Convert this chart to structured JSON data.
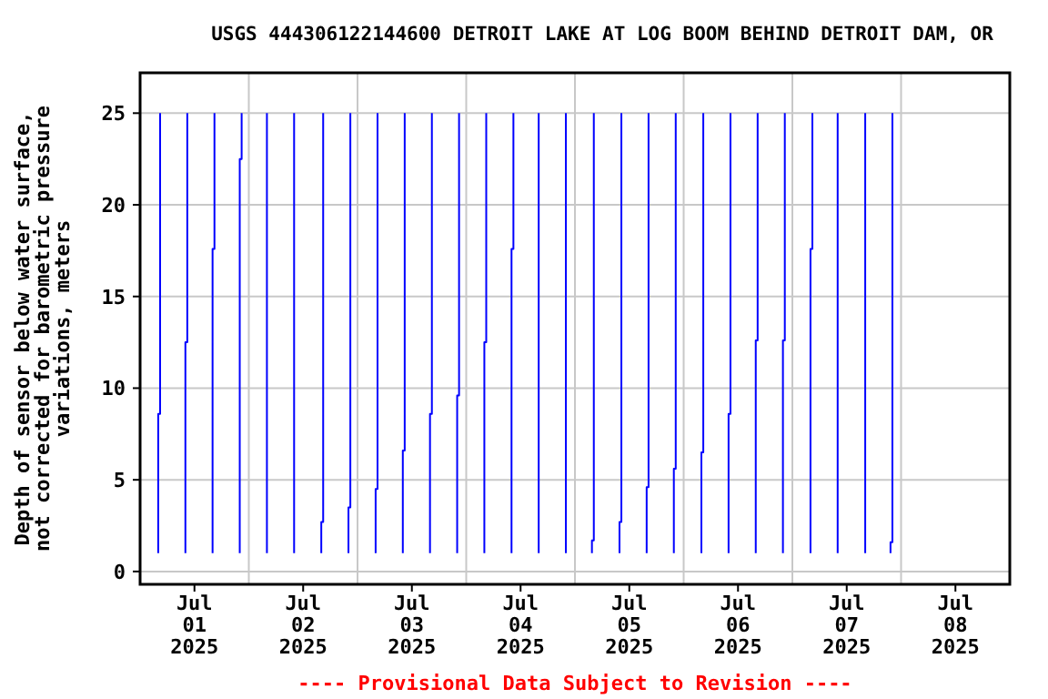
{
  "chart_data": {
    "type": "line",
    "title": "USGS 444306122144600 DETROIT LAKE AT LOG BOOM BEHIND DETROIT DAM, OR",
    "ylabel": "Depth of sensor below water surface, not corrected for barometric pressure variations, meters",
    "annotations": [
      "---- Provisional Data Subject to Revision ----"
    ],
    "xlim": [
      "2025-07-01T00:00",
      "2025-07-09T00:00"
    ],
    "xticks": [
      {
        "value": "2025-07-01T00:00",
        "label": null
      },
      {
        "value": "2025-07-01T12:00",
        "label": "Jul 01 2025"
      },
      {
        "value": "2025-07-02T00:00",
        "label": null
      },
      {
        "value": "2025-07-02T12:00",
        "label": "Jul 02 2025"
      },
      {
        "value": "2025-07-03T00:00",
        "label": null
      },
      {
        "value": "2025-07-03T12:00",
        "label": "Jul 03 2025"
      },
      {
        "value": "2025-07-04T00:00",
        "label": null
      },
      {
        "value": "2025-07-04T12:00",
        "label": "Jul 04 2025"
      },
      {
        "value": "2025-07-05T00:00",
        "label": null
      },
      {
        "value": "2025-07-05T12:00",
        "label": "Jul 05 2025"
      },
      {
        "value": "2025-07-06T00:00",
        "label": null
      },
      {
        "value": "2025-07-06T12:00",
        "label": "Jul 06 2025"
      },
      {
        "value": "2025-07-07T00:00",
        "label": null
      },
      {
        "value": "2025-07-07T12:00",
        "label": "Jul 07 2025"
      },
      {
        "value": "2025-07-08T00:00",
        "label": null
      },
      {
        "value": "2025-07-08T12:00",
        "label": "Jul 08 2025"
      },
      {
        "value": "2025-07-09T00:00",
        "label": null
      }
    ],
    "ylim": [
      -0.7,
      27.2
    ],
    "yticks": [
      0,
      5,
      10,
      15,
      20,
      25
    ],
    "grid": true,
    "line_style": "solid",
    "marker": "none",
    "series": [
      {
        "color": "#0000ff",
        "x": [
          "2025-07-01T04:00",
          "2025-07-01T04:00",
          "2025-07-01T04:25",
          "2025-07-01T04:25",
          "2025-07-01T07:00",
          "2025-07-01T10:00",
          "2025-07-01T10:00",
          "2025-07-01T10:25",
          "2025-07-01T10:25",
          "2025-07-01T13:00",
          "2025-07-01T16:00",
          "2025-07-01T16:00",
          "2025-07-01T16:25",
          "2025-07-01T16:25",
          "2025-07-01T19:00",
          "2025-07-01T22:00",
          "2025-07-01T22:00",
          "2025-07-01T22:25",
          "2025-07-01T22:25",
          "2025-07-02T01:00",
          "2025-07-02T04:00",
          "2025-07-02T04:00",
          "2025-07-02T07:00",
          "2025-07-02T10:00",
          "2025-07-02T10:00",
          "2025-07-02T13:00",
          "2025-07-02T16:00",
          "2025-07-02T16:00",
          "2025-07-02T16:25",
          "2025-07-02T16:25",
          "2025-07-02T19:00",
          "2025-07-02T22:00",
          "2025-07-02T22:00",
          "2025-07-02T22:25",
          "2025-07-02T22:25",
          "2025-07-03T01:00",
          "2025-07-03T04:00",
          "2025-07-03T04:00",
          "2025-07-03T04:25",
          "2025-07-03T04:25",
          "2025-07-03T07:00",
          "2025-07-03T10:00",
          "2025-07-03T10:00",
          "2025-07-03T10:25",
          "2025-07-03T10:25",
          "2025-07-03T13:00",
          "2025-07-03T16:00",
          "2025-07-03T16:00",
          "2025-07-03T16:25",
          "2025-07-03T16:25",
          "2025-07-03T19:00",
          "2025-07-03T22:00",
          "2025-07-03T22:00",
          "2025-07-03T22:25",
          "2025-07-03T22:25",
          "2025-07-04T01:00",
          "2025-07-04T04:00",
          "2025-07-04T04:00",
          "2025-07-04T04:25",
          "2025-07-04T04:25",
          "2025-07-04T07:00",
          "2025-07-04T10:00",
          "2025-07-04T10:00",
          "2025-07-04T10:25",
          "2025-07-04T10:25",
          "2025-07-04T13:00",
          "2025-07-04T16:00",
          "2025-07-04T16:00",
          "2025-07-04T19:00",
          "2025-07-04T22:00",
          "2025-07-04T22:00",
          "2025-07-05T01:00",
          "2025-07-05T03:45",
          "2025-07-05T03:45",
          "2025-07-05T04:10",
          "2025-07-05T04:10",
          "2025-07-05T07:00",
          "2025-07-05T09:50",
          "2025-07-05T09:50",
          "2025-07-05T10:15",
          "2025-07-05T10:15",
          "2025-07-05T13:00",
          "2025-07-05T15:50",
          "2025-07-05T15:50",
          "2025-07-05T16:15",
          "2025-07-05T16:15",
          "2025-07-05T19:00",
          "2025-07-05T21:50",
          "2025-07-05T21:50",
          "2025-07-05T22:15",
          "2025-07-05T22:15",
          "2025-07-06T01:00",
          "2025-07-06T03:55",
          "2025-07-06T03:55",
          "2025-07-06T04:20",
          "2025-07-06T04:20",
          "2025-07-06T07:00",
          "2025-07-06T09:55",
          "2025-07-06T09:55",
          "2025-07-06T10:20",
          "2025-07-06T10:20",
          "2025-07-06T13:00",
          "2025-07-06T15:55",
          "2025-07-06T15:55",
          "2025-07-06T16:20",
          "2025-07-06T16:20",
          "2025-07-06T19:00",
          "2025-07-06T21:55",
          "2025-07-06T21:55",
          "2025-07-06T22:20",
          "2025-07-06T22:20",
          "2025-07-07T01:00",
          "2025-07-07T04:00",
          "2025-07-07T04:00",
          "2025-07-07T04:25",
          "2025-07-07T04:25",
          "2025-07-07T07:00",
          "2025-07-07T10:00",
          "2025-07-07T10:00",
          "2025-07-07T13:00",
          "2025-07-07T16:05",
          "2025-07-07T16:05",
          "2025-07-07T19:00",
          "2025-07-07T21:40",
          "2025-07-07T21:40",
          "2025-07-07T22:05",
          "2025-07-07T22:05"
        ],
        "values": [
          1,
          8.6,
          8.6,
          25,
          null,
          1,
          12.5,
          12.5,
          25,
          null,
          1,
          17.6,
          17.6,
          25,
          null,
          1,
          22.5,
          22.5,
          25,
          null,
          1,
          25,
          null,
          1,
          25,
          null,
          1,
          2.7,
          2.7,
          25,
          null,
          1,
          3.5,
          3.5,
          25,
          null,
          1,
          4.5,
          4.5,
          25,
          null,
          1,
          6.6,
          6.6,
          25,
          null,
          1,
          8.6,
          8.6,
          25,
          null,
          1,
          9.6,
          9.6,
          25,
          null,
          1,
          12.5,
          12.5,
          25,
          null,
          1,
          17.6,
          17.6,
          25,
          null,
          1,
          25,
          null,
          1,
          25,
          null,
          1,
          1.7,
          1.7,
          25,
          null,
          1,
          2.7,
          2.7,
          25,
          null,
          1,
          4.6,
          4.6,
          25,
          null,
          1,
          5.6,
          5.6,
          25,
          null,
          1,
          6.5,
          6.5,
          25,
          null,
          1,
          8.6,
          8.6,
          25,
          null,
          1,
          12.6,
          12.6,
          25,
          null,
          1,
          12.6,
          12.6,
          25,
          null,
          1,
          17.6,
          17.6,
          25,
          null,
          1,
          25,
          null,
          1,
          25,
          null,
          1,
          1.6,
          1.6,
          25
        ]
      }
    ]
  }
}
